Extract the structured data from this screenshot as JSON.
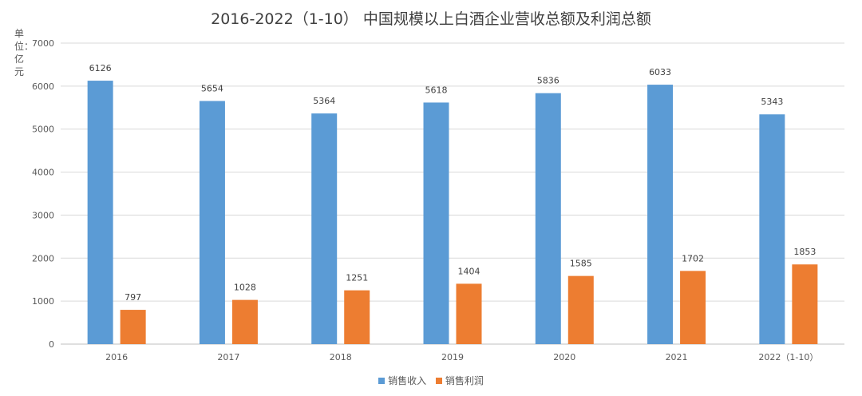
{
  "chart_data": {
    "type": "bar",
    "title": "2016-2022（1-10） 中国规模以上白酒企业营收总额及利润总额",
    "unit_label": "单位：亿元",
    "categories": [
      "2016",
      "2017",
      "2018",
      "2019",
      "2020",
      "2021",
      "2022（1-10）"
    ],
    "series": [
      {
        "name": "销售收入",
        "color": "#5B9BD5",
        "values": [
          6126,
          5654,
          5364,
          5618,
          5836,
          6033,
          5343
        ]
      },
      {
        "name": "销售利润",
        "color": "#ED7D31",
        "values": [
          797,
          1028,
          1251,
          1404,
          1585,
          1702,
          1853
        ]
      }
    ],
    "ylim": [
      0,
      7000
    ],
    "yticks": [
      0,
      1000,
      2000,
      3000,
      4000,
      5000,
      6000,
      7000
    ],
    "grid": true,
    "data_labels": true,
    "legend_position": "bottom"
  }
}
